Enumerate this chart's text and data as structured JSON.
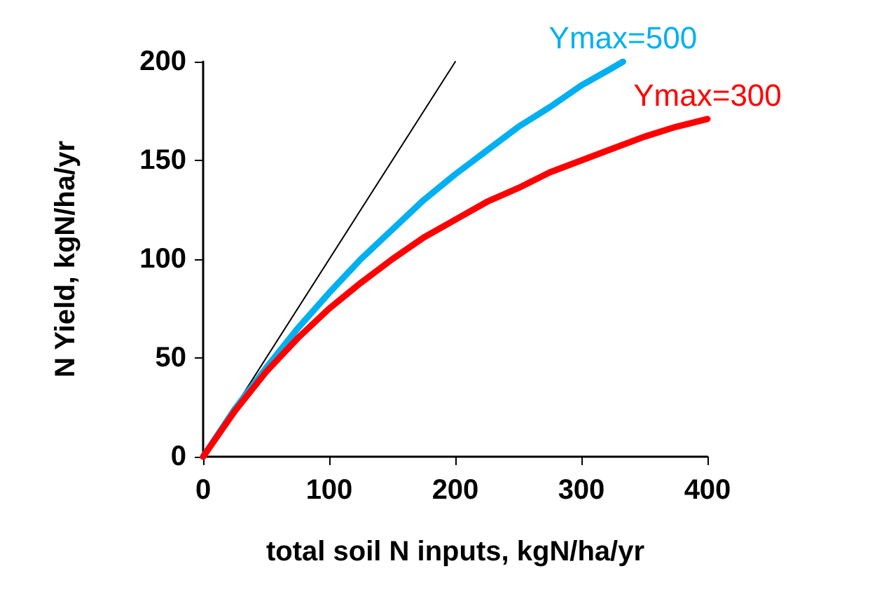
{
  "chart_data": {
    "type": "line",
    "xlabel": "total soil N inputs, kgN/ha/yr",
    "ylabel": "N Yield, kgN/ha/yr",
    "xlim": [
      0,
      400
    ],
    "xticks": [
      0,
      100,
      200,
      300,
      400
    ],
    "ylim": [
      0,
      200
    ],
    "yticks": [
      0,
      50,
      100,
      150,
      200
    ],
    "grid": false,
    "legend": false,
    "marker": "none",
    "line_style": "solid",
    "series": [
      {
        "color": "#000000",
        "x": [
          0,
          200
        ],
        "values": [
          0,
          200
        ]
      },
      {
        "name": "Ymax=500",
        "color": "#00b0f0",
        "x": [
          0,
          25,
          50,
          75,
          100,
          125,
          150,
          175,
          200,
          225,
          250,
          275,
          300,
          325,
          333
        ],
        "values": [
          0,
          24,
          45,
          65,
          83,
          100,
          115,
          130,
          143,
          155,
          167,
          177,
          188,
          197,
          200
        ]
      },
      {
        "name": "Ymax=300",
        "color": "#ff0000",
        "x": [
          0,
          25,
          50,
          75,
          100,
          125,
          150,
          175,
          200,
          225,
          250,
          275,
          300,
          325,
          350,
          375,
          400
        ],
        "values": [
          0,
          23,
          43,
          60,
          75,
          88,
          100,
          111,
          120,
          129,
          136,
          144,
          150,
          156,
          162,
          167,
          171
        ]
      }
    ]
  }
}
